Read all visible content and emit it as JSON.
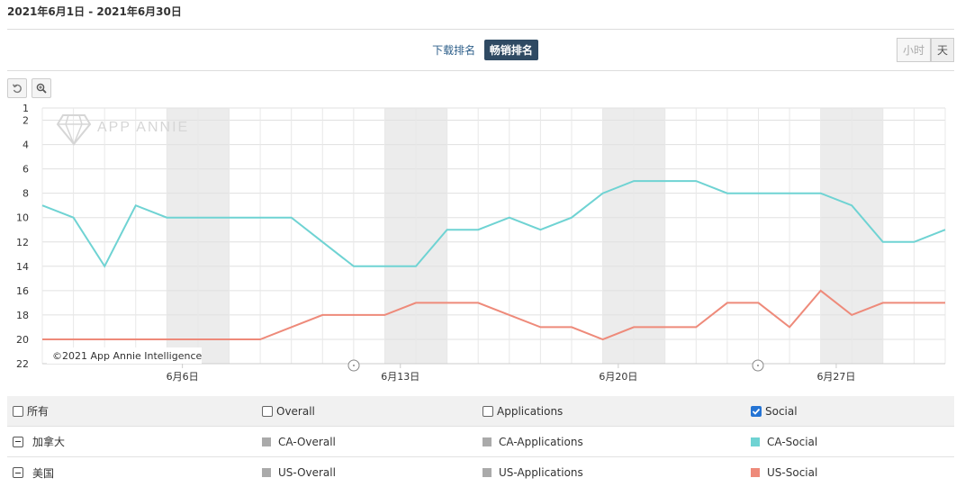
{
  "header": {
    "date_range": "2021年6月1日 - 2021年6月30日"
  },
  "tabs": {
    "download": "下载排名",
    "grossing": "畅销排名"
  },
  "granularity": {
    "hour": "小时",
    "day": "天"
  },
  "toolbar": {
    "reset_icon": "undo-icon",
    "zoom_icon": "zoom-in-icon"
  },
  "watermark": {
    "text": "APP ANNIE",
    "credit": "©2021 App Annie Intelligence"
  },
  "chart_data": {
    "type": "line",
    "x": [
      "6/1",
      "6/2",
      "6/3",
      "6/4",
      "6/5",
      "6/6",
      "6/7",
      "6/8",
      "6/9",
      "6/10",
      "6/11",
      "6/12",
      "6/13",
      "6/14",
      "6/15",
      "6/16",
      "6/17",
      "6/18",
      "6/19",
      "6/20",
      "6/21",
      "6/22",
      "6/23",
      "6/24",
      "6/25",
      "6/26",
      "6/27",
      "6/28",
      "6/29",
      "6/30"
    ],
    "x_tick_labels": [
      "6月6日",
      "6月13日",
      "6月20日",
      "6月27日"
    ],
    "y_ticks": [
      "1",
      "2",
      "4",
      "6",
      "8",
      "10",
      "12",
      "14",
      "16",
      "18",
      "20",
      "22"
    ],
    "ylim": [
      1,
      22
    ],
    "y_reversed": true,
    "grid": true,
    "series": [
      {
        "name": "CA-Social",
        "color": "#6fd3d3",
        "values": [
          9,
          10,
          14,
          9,
          10,
          10,
          10,
          10,
          10,
          12,
          14,
          14,
          14,
          11,
          11,
          10,
          11,
          10,
          8,
          7,
          7,
          7,
          8,
          8,
          8,
          8,
          9,
          12,
          12,
          11
        ]
      },
      {
        "name": "US-Social",
        "color": "#ee8a7a",
        "values": [
          20,
          20,
          20,
          20,
          20,
          20,
          20,
          20,
          19,
          18,
          18,
          18,
          17,
          17,
          17,
          18,
          19,
          19,
          20,
          19,
          19,
          19,
          17,
          17,
          19,
          16,
          18,
          17,
          17,
          17
        ]
      }
    ]
  },
  "legend": {
    "head": {
      "all": "所有",
      "overall": "Overall",
      "applications": "Applications",
      "social": "Social"
    },
    "rows": [
      {
        "country": "加拿大",
        "overall": "CA-Overall",
        "applications": "CA-Applications",
        "social": "CA-Social",
        "social_color": "#6fd3d3"
      },
      {
        "country": "美国",
        "overall": "US-Overall",
        "applications": "US-Applications",
        "social": "US-Social",
        "social_color": "#ee8a7a"
      }
    ],
    "grey_color": "#aaaaaa"
  }
}
